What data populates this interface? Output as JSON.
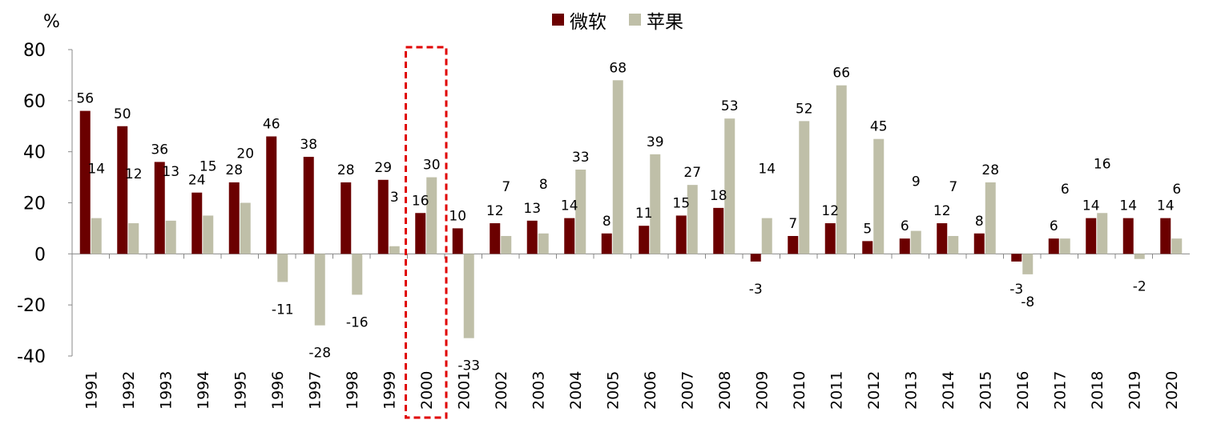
{
  "chart_data": {
    "type": "bar",
    "unit_label": "%",
    "categories": [
      "1991",
      "1992",
      "1993",
      "1994",
      "1995",
      "1996",
      "1997",
      "1998",
      "1999",
      "2000",
      "2001",
      "2002",
      "2003",
      "2004",
      "2005",
      "2006",
      "2007",
      "2008",
      "2009",
      "2010",
      "2011",
      "2012",
      "2013",
      "2014",
      "2015",
      "2016",
      "2017",
      "2018",
      "2019",
      "2020"
    ],
    "series": [
      {
        "name": "微软",
        "color": "#6b0000",
        "values": [
          56,
          50,
          36,
          24,
          28,
          46,
          38,
          28,
          29,
          16,
          10,
          12,
          13,
          14,
          8,
          11,
          15,
          18,
          -3,
          7,
          12,
          5,
          6,
          12,
          8,
          -3,
          6,
          14,
          14,
          14
        ]
      },
      {
        "name": "苹果",
        "color": "#bfbfa8",
        "values": [
          14,
          12,
          13,
          15,
          20,
          -11,
          -28,
          -16,
          3,
          30,
          -33,
          7,
          8,
          33,
          68,
          39,
          27,
          53,
          14,
          52,
          66,
          45,
          9,
          7,
          28,
          -8,
          6,
          16,
          -2,
          6
        ]
      }
    ],
    "ylim": [
      -40,
      80
    ],
    "yticks": [
      -40,
      -20,
      0,
      20,
      40,
      60,
      80
    ],
    "legend_position": "top-center",
    "highlight_category": "2000",
    "highlight_color": "#e00000"
  }
}
